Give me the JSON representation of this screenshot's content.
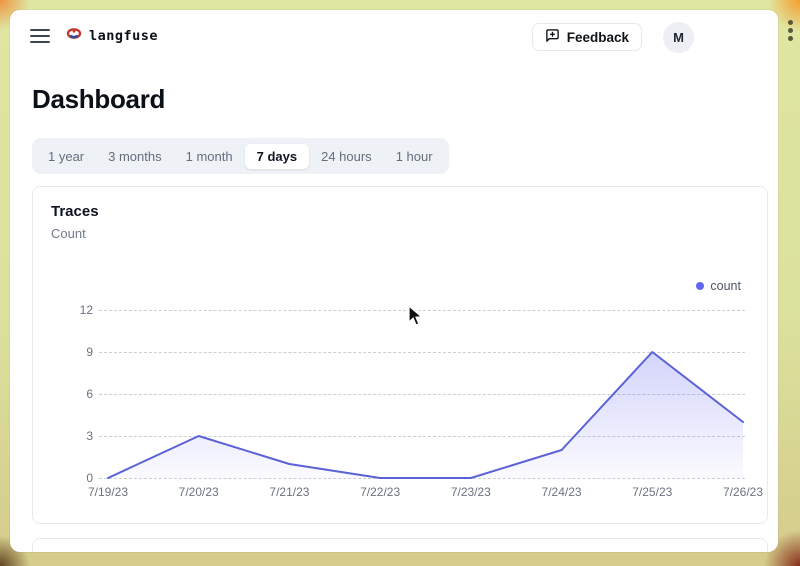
{
  "header": {
    "brand": "langfuse",
    "feedback_label": "Feedback",
    "avatar_initial": "M"
  },
  "page": {
    "title": "Dashboard"
  },
  "time_range_tabs": {
    "options": [
      "1 year",
      "3 months",
      "1 month",
      "7 days",
      "24 hours",
      "1 hour"
    ],
    "selected": "7 days"
  },
  "traces_card": {
    "title": "Traces",
    "subtitle": "Count"
  },
  "chart_data": {
    "type": "area",
    "title": "Traces",
    "ylabel": "Count",
    "x": [
      "7/19/23",
      "7/20/23",
      "7/21/23",
      "7/22/23",
      "7/23/23",
      "7/24/23",
      "7/25/23",
      "7/26/23"
    ],
    "series": [
      {
        "name": "count",
        "values": [
          0,
          3,
          1,
          0,
          0,
          2,
          9,
          4
        ]
      }
    ],
    "ylim": [
      0,
      12
    ],
    "yticks": [
      0,
      3,
      6,
      9,
      12
    ],
    "grid": "horizontal-dashed",
    "legend_position": "top-right",
    "legend": [
      "count"
    ],
    "line_color": "#5b61d6",
    "fill_color": "#6366f1",
    "legend_dot_color": "#6366f1"
  }
}
